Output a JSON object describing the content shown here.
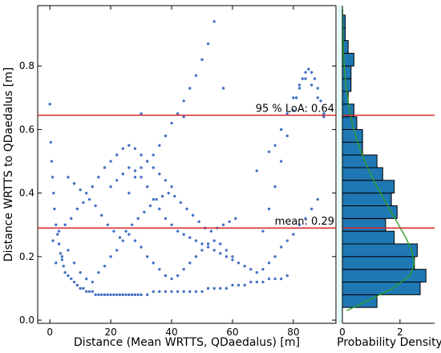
{
  "chart_data": [
    {
      "type": "scatter",
      "xlabel": "Distance (Mean WRTTS, QDaedalus) [m]",
      "ylabel": "Distance WRTTS to QDaedalus [m]",
      "xlim": [
        -4,
        94
      ],
      "ylim": [
        -0.01,
        0.99
      ],
      "x_ticks": [
        0,
        20,
        40,
        60,
        80
      ],
      "y_ticks": [
        0.0,
        0.2,
        0.4,
        0.6,
        0.8
      ],
      "point_color": "#4472c4",
      "grid": false,
      "reference_lines": [
        {
          "label": "95 % LoA:  0.64",
          "y": 0.645,
          "color": "#d62728"
        },
        {
          "label": "mean:  0.29",
          "y": 0.29,
          "color": "#d62728"
        }
      ],
      "point_groups": [
        {
          "x": [
            0.0,
            0.3,
            0.6,
            0.9,
            1.2,
            1.5,
            2.0,
            2.5,
            3.0,
            3.5,
            4.0,
            4.5,
            5.0,
            6.0,
            7.0,
            8.0,
            9.0,
            10.0,
            11.0,
            12.0,
            13.0,
            14.0,
            15.0,
            16.0,
            17.0,
            18.0,
            19.0,
            20.0,
            21.0,
            22.0,
            23.0,
            24.0,
            25.0,
            26.0,
            27.0,
            28.0,
            29.0,
            30.0,
            32.0,
            34.0,
            36.0,
            38.0,
            40.0,
            42.0,
            44.0,
            46.0,
            48.0,
            50.0,
            52.0,
            54.0,
            56.0,
            58.0,
            60.0,
            62.0,
            64.0,
            66.0,
            68.0,
            70.0,
            72.0,
            74.0,
            76.0,
            78.0
          ],
          "y": [
            0.68,
            0.56,
            0.5,
            0.45,
            0.4,
            0.35,
            0.3,
            0.27,
            0.24,
            0.21,
            0.19,
            0.17,
            0.15,
            0.14,
            0.13,
            0.12,
            0.11,
            0.1,
            0.1,
            0.09,
            0.09,
            0.09,
            0.08,
            0.08,
            0.08,
            0.08,
            0.08,
            0.08,
            0.08,
            0.08,
            0.08,
            0.08,
            0.08,
            0.08,
            0.08,
            0.08,
            0.08,
            0.08,
            0.08,
            0.09,
            0.09,
            0.09,
            0.09,
            0.09,
            0.09,
            0.09,
            0.09,
            0.09,
            0.1,
            0.1,
            0.1,
            0.1,
            0.11,
            0.11,
            0.11,
            0.12,
            0.12,
            0.12,
            0.13,
            0.13,
            0.13,
            0.14
          ]
        },
        {
          "x": [
            2.0,
            4.0,
            6.0,
            8.0,
            10.0,
            12.0,
            14.0,
            16.0,
            18.0,
            20.0,
            22.0,
            24.0,
            26.0,
            28.0,
            30.0,
            32.0,
            34.0,
            36.0,
            38.0,
            40.0,
            42.0,
            44.0,
            46.0,
            48.0,
            50.0,
            52.0,
            54.0,
            56.0,
            58.0,
            60.0,
            62.0,
            64.0,
            66.0,
            68.0,
            70.0,
            72.0,
            74.0,
            76.0,
            78.0,
            80.0,
            82.0,
            84.0,
            86.0,
            88.0
          ],
          "y": [
            0.18,
            0.2,
            0.22,
            0.18,
            0.15,
            0.13,
            0.12,
            0.15,
            0.17,
            0.2,
            0.22,
            0.25,
            0.27,
            0.25,
            0.23,
            0.2,
            0.18,
            0.16,
            0.14,
            0.13,
            0.14,
            0.16,
            0.18,
            0.2,
            0.22,
            0.24,
            0.25,
            0.24,
            0.22,
            0.2,
            0.18,
            0.17,
            0.16,
            0.15,
            0.16,
            0.18,
            0.2,
            0.23,
            0.25,
            0.27,
            0.3,
            0.32,
            0.35,
            0.38
          ]
        },
        {
          "x": [
            1.0,
            3.0,
            5.0,
            7.0,
            9.0,
            11.0,
            13.0,
            15.0,
            17.0,
            19.0,
            21.0,
            23.0,
            25.0,
            27.0,
            29.0,
            31.0,
            33.0,
            35.0,
            37.0,
            39.0,
            41.0,
            43.0,
            45.0,
            47.0,
            49.0,
            51.0,
            53.0,
            55.0,
            57.0,
            59.0,
            61.0
          ],
          "y": [
            0.25,
            0.28,
            0.3,
            0.32,
            0.35,
            0.37,
            0.38,
            0.36,
            0.33,
            0.3,
            0.28,
            0.26,
            0.28,
            0.3,
            0.32,
            0.34,
            0.36,
            0.38,
            0.39,
            0.4,
            0.39,
            0.37,
            0.35,
            0.33,
            0.31,
            0.29,
            0.28,
            0.29,
            0.3,
            0.31,
            0.32
          ]
        },
        {
          "x": [
            6.0,
            8.0,
            10.0,
            12.0,
            14.0,
            16.0,
            18.0,
            20.0,
            22.0,
            24.0,
            26.0,
            28.0,
            30.0,
            32.0,
            34.0,
            36.0,
            38.0,
            40.0
          ],
          "y": [
            0.45,
            0.43,
            0.41,
            0.4,
            0.42,
            0.45,
            0.48,
            0.5,
            0.52,
            0.54,
            0.55,
            0.54,
            0.52,
            0.5,
            0.48,
            0.46,
            0.44,
            0.42
          ]
        },
        {
          "x": [
            26.0,
            28.0,
            30.0,
            32.0,
            34.0,
            36.0,
            38.0,
            40.0,
            42.0,
            44.0,
            46.0,
            48.0,
            50.0,
            52.0,
            54.0
          ],
          "y": [
            0.4,
            0.45,
            0.48,
            0.5,
            0.52,
            0.55,
            0.58,
            0.62,
            0.65,
            0.69,
            0.73,
            0.77,
            0.82,
            0.87,
            0.94
          ]
        },
        {
          "x": [
            20.0,
            22.0,
            24.0,
            26.0,
            28.0,
            30.0,
            32.0,
            34.0,
            36.0,
            38.0,
            40.0,
            42.0,
            44.0,
            46.0,
            48.0,
            50.0,
            52.0,
            54.0,
            56.0,
            58.0,
            60.0
          ],
          "y": [
            0.42,
            0.44,
            0.46,
            0.48,
            0.47,
            0.45,
            0.42,
            0.38,
            0.35,
            0.32,
            0.3,
            0.28,
            0.27,
            0.26,
            0.25,
            0.24,
            0.23,
            0.22,
            0.21,
            0.2,
            0.19
          ]
        },
        {
          "x": [
            70.0,
            72.0,
            74.0,
            76.0,
            78.0,
            80.0,
            81.0,
            82.0,
            83.0,
            84.0,
            85.0,
            86.0,
            87.0,
            88.0,
            89.0,
            90.0
          ],
          "y": [
            0.28,
            0.35,
            0.42,
            0.5,
            0.58,
            0.66,
            0.7,
            0.73,
            0.76,
            0.78,
            0.79,
            0.78,
            0.76,
            0.73,
            0.69,
            0.64
          ]
        },
        {
          "x": [
            74.0,
            76.0,
            78.0,
            80.0,
            82.0,
            84.0,
            86.0,
            88.0,
            90.0
          ],
          "y": [
            0.55,
            0.6,
            0.65,
            0.7,
            0.74,
            0.76,
            0.74,
            0.7,
            0.65
          ]
        },
        {
          "x": [
            57.0,
            68.0,
            72.0,
            30.0,
            44.0
          ],
          "y": [
            0.73,
            0.47,
            0.53,
            0.65,
            0.64
          ]
        }
      ]
    },
    {
      "type": "bar",
      "orientation": "horizontal",
      "xlabel": "Probability Density",
      "xlim": [
        0,
        3.2
      ],
      "x_ticks": [
        0,
        2
      ],
      "bar_color": "#1f77b4",
      "bin_edges": [
        0.04,
        0.08,
        0.12,
        0.16,
        0.2,
        0.24,
        0.28,
        0.32,
        0.36,
        0.4,
        0.44,
        0.48,
        0.52,
        0.56,
        0.6,
        0.64,
        0.68,
        0.72,
        0.76,
        0.8,
        0.84,
        0.88,
        0.92,
        0.96
      ],
      "densities": [
        1.2,
        2.7,
        2.9,
        2.5,
        2.6,
        1.8,
        1.5,
        1.9,
        1.7,
        1.8,
        1.4,
        1.2,
        0.7,
        0.7,
        0.5,
        0.4,
        0.2,
        0.3,
        0.3,
        0.4,
        0.2,
        0.1,
        0.1
      ],
      "fit_curve": {
        "color": "#2ca02c",
        "y": [
          0.03,
          0.06,
          0.1,
          0.14,
          0.18,
          0.22,
          0.26,
          0.3,
          0.34,
          0.38,
          0.42,
          0.46,
          0.5,
          0.54,
          0.58,
          0.62,
          0.66,
          0.7,
          0.74,
          0.78,
          0.82,
          0.86,
          0.9,
          0.94,
          0.98
        ],
        "x": [
          0.15,
          0.85,
          1.75,
          2.35,
          2.5,
          2.4,
          2.2,
          1.95,
          1.7,
          1.45,
          1.2,
          0.98,
          0.78,
          0.6,
          0.46,
          0.34,
          0.25,
          0.18,
          0.12,
          0.08,
          0.05,
          0.03,
          0.02,
          0.01,
          0.005
        ]
      }
    }
  ]
}
